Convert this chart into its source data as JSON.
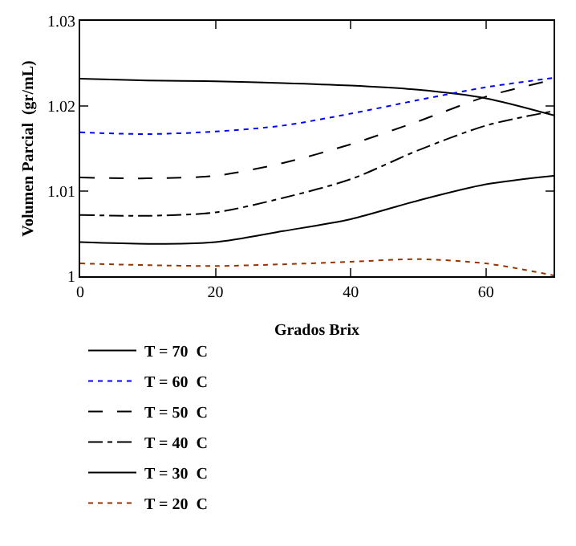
{
  "chart_data": {
    "type": "line",
    "xlabel": "Grados Brix",
    "ylabel": "Volumen Parcial  (gr/mL)",
    "x": [
      0,
      10,
      20,
      30,
      40,
      50,
      60,
      70
    ],
    "xlim": [
      0,
      70
    ],
    "xticks": [
      0,
      20,
      40,
      60
    ],
    "ylim": [
      1,
      1.03
    ],
    "yticks": [
      1,
      1.01,
      1.02,
      1.03
    ],
    "grid": false,
    "legend": "bottom left",
    "marker": "none",
    "series": [
      {
        "name": "T = 70  C",
        "color": "#000000",
        "line_style": "solid",
        "values": [
          1.0232,
          1.023,
          1.0229,
          1.0227,
          1.0224,
          1.0219,
          1.0209,
          1.0189
        ]
      },
      {
        "name": "T = 60  C",
        "color": "#0000ff",
        "line_style": "dotted",
        "values": [
          1.0169,
          1.0167,
          1.017,
          1.0177,
          1.0191,
          1.0207,
          1.0222,
          1.0233
        ]
      },
      {
        "name": "T = 50  C",
        "color": "#000000",
        "line_style": "dashed",
        "values": [
          1.0116,
          1.0115,
          1.0118,
          1.0133,
          1.0155,
          1.0182,
          1.0211,
          1.0231
        ]
      },
      {
        "name": "T = 40  C",
        "color": "#000000",
        "line_style": "dashdot",
        "values": [
          1.0072,
          1.0071,
          1.0075,
          1.0092,
          1.0114,
          1.0148,
          1.0177,
          1.0194
        ]
      },
      {
        "name": "T = 30  C",
        "color": "#000000",
        "line_style": "solid",
        "values": [
          1.004,
          1.0038,
          1.004,
          1.0053,
          1.0067,
          1.0089,
          1.0108,
          1.0118
        ]
      },
      {
        "name": "T = 20  C",
        "color": "#993300",
        "line_style": "dotted",
        "values": [
          1.0015,
          1.0013,
          1.0012,
          1.0014,
          1.0017,
          1.002,
          1.0015,
          1.0001
        ]
      }
    ]
  }
}
